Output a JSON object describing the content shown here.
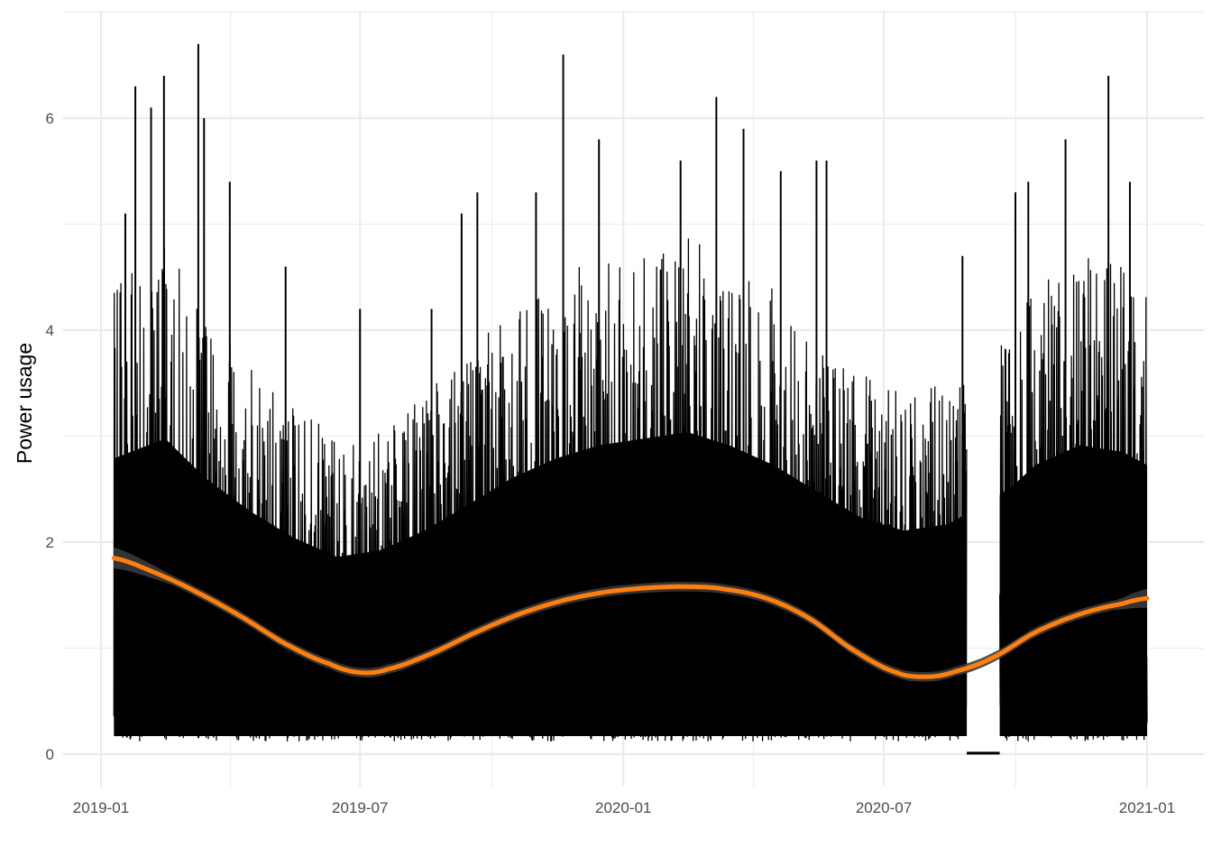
{
  "chart_data": {
    "type": "line",
    "title": "",
    "xlabel": "",
    "ylabel": "Power usage",
    "x_ticks": [
      "2019-01",
      "2019-07",
      "2020-01",
      "2020-07",
      "2021-01"
    ],
    "y_ticks": [
      "0",
      "2",
      "4",
      "6"
    ],
    "xlim": [
      "2018-12-20",
      "2021-01-20"
    ],
    "ylim": [
      -0.35,
      7.0
    ],
    "grid": true,
    "legend": "none",
    "colors": {
      "raw_series": "#000000",
      "smooth_line": "#ff7f0e",
      "confidence_band": "#3a3a3a",
      "gridline": "#ebebeb",
      "tick_text": "#4d4d4d"
    },
    "series": [
      {
        "kind": "raw",
        "start": "2019-01-10",
        "end": "2021-01-01",
        "gap": [
          "2020-08-28",
          "2020-09-20"
        ],
        "typical_low": 0.12,
        "envelope": [
          {
            "x": "2019-01-10",
            "y": 4.5
          },
          {
            "x": "2019-02-15",
            "y": 4.8
          },
          {
            "x": "2019-03-15",
            "y": 4.2
          },
          {
            "x": "2019-04-15",
            "y": 3.7
          },
          {
            "x": "2019-05-15",
            "y": 3.3
          },
          {
            "x": "2019-06-15",
            "y": 3.0
          },
          {
            "x": "2019-07-15",
            "y": 3.1
          },
          {
            "x": "2019-08-15",
            "y": 3.4
          },
          {
            "x": "2019-09-15",
            "y": 3.8
          },
          {
            "x": "2019-10-15",
            "y": 4.2
          },
          {
            "x": "2019-11-15",
            "y": 4.5
          },
          {
            "x": "2019-12-15",
            "y": 4.7
          },
          {
            "x": "2020-01-15",
            "y": 4.8
          },
          {
            "x": "2020-02-15",
            "y": 4.9
          },
          {
            "x": "2020-03-15",
            "y": 4.7
          },
          {
            "x": "2020-04-15",
            "y": 4.4
          },
          {
            "x": "2020-05-15",
            "y": 4.0
          },
          {
            "x": "2020-06-15",
            "y": 3.6
          },
          {
            "x": "2020-07-15",
            "y": 3.4
          },
          {
            "x": "2020-08-15",
            "y": 3.5
          },
          {
            "x": "2020-09-25",
            "y": 4.0
          },
          {
            "x": "2020-10-15",
            "y": 4.4
          },
          {
            "x": "2020-11-15",
            "y": 4.7
          },
          {
            "x": "2020-12-15",
            "y": 4.6
          },
          {
            "x": "2021-01-01",
            "y": 4.4
          }
        ],
        "peaks": [
          {
            "x": "2019-01-18",
            "y": 5.1
          },
          {
            "x": "2019-01-25",
            "y": 6.3
          },
          {
            "x": "2019-02-05",
            "y": 6.1
          },
          {
            "x": "2019-02-14",
            "y": 6.4
          },
          {
            "x": "2019-03-10",
            "y": 6.7
          },
          {
            "x": "2019-03-14",
            "y": 6.0
          },
          {
            "x": "2019-04-01",
            "y": 5.4
          },
          {
            "x": "2019-05-10",
            "y": 4.6
          },
          {
            "x": "2019-07-01",
            "y": 4.2
          },
          {
            "x": "2019-08-20",
            "y": 4.2
          },
          {
            "x": "2019-09-10",
            "y": 5.1
          },
          {
            "x": "2019-09-21",
            "y": 5.3
          },
          {
            "x": "2019-11-01",
            "y": 5.3
          },
          {
            "x": "2019-11-20",
            "y": 6.6
          },
          {
            "x": "2019-12-15",
            "y": 5.8
          },
          {
            "x": "2020-02-10",
            "y": 5.6
          },
          {
            "x": "2020-03-06",
            "y": 6.2
          },
          {
            "x": "2020-03-25",
            "y": 5.9
          },
          {
            "x": "2020-04-20",
            "y": 5.5
          },
          {
            "x": "2020-05-15",
            "y": 5.6
          },
          {
            "x": "2020-05-22",
            "y": 5.6
          },
          {
            "x": "2020-08-25",
            "y": 4.7
          },
          {
            "x": "2020-10-01",
            "y": 5.3
          },
          {
            "x": "2020-10-10",
            "y": 5.4
          },
          {
            "x": "2020-11-05",
            "y": 5.8
          },
          {
            "x": "2020-12-05",
            "y": 6.4
          },
          {
            "x": "2020-12-20",
            "y": 5.4
          }
        ]
      },
      {
        "kind": "smooth",
        "points": [
          {
            "x": "2019-01-10",
            "y": 1.85
          },
          {
            "x": "2019-02-10",
            "y": 1.7
          },
          {
            "x": "2019-03-10",
            "y": 1.52
          },
          {
            "x": "2019-04-10",
            "y": 1.29
          },
          {
            "x": "2019-05-10",
            "y": 1.04
          },
          {
            "x": "2019-06-10",
            "y": 0.85
          },
          {
            "x": "2019-07-01",
            "y": 0.77
          },
          {
            "x": "2019-07-20",
            "y": 0.8
          },
          {
            "x": "2019-08-20",
            "y": 0.95
          },
          {
            "x": "2019-09-20",
            "y": 1.15
          },
          {
            "x": "2019-10-20",
            "y": 1.32
          },
          {
            "x": "2019-11-20",
            "y": 1.45
          },
          {
            "x": "2019-12-20",
            "y": 1.53
          },
          {
            "x": "2020-01-20",
            "y": 1.57
          },
          {
            "x": "2020-02-15",
            "y": 1.58
          },
          {
            "x": "2020-03-10",
            "y": 1.56
          },
          {
            "x": "2020-04-10",
            "y": 1.47
          },
          {
            "x": "2020-05-10",
            "y": 1.28
          },
          {
            "x": "2020-06-10",
            "y": 0.98
          },
          {
            "x": "2020-07-10",
            "y": 0.77
          },
          {
            "x": "2020-08-01",
            "y": 0.73
          },
          {
            "x": "2020-08-20",
            "y": 0.78
          },
          {
            "x": "2020-09-15",
            "y": 0.91
          },
          {
            "x": "2020-10-15",
            "y": 1.15
          },
          {
            "x": "2020-11-15",
            "y": 1.32
          },
          {
            "x": "2020-12-15",
            "y": 1.42
          },
          {
            "x": "2021-01-01",
            "y": 1.47
          }
        ],
        "band_halfwidth": [
          {
            "x": "2019-01-10",
            "y": 0.1
          },
          {
            "x": "2019-02-20",
            "y": 0.045
          },
          {
            "x": "2020-12-10",
            "y": 0.045
          },
          {
            "x": "2021-01-01",
            "y": 0.09
          }
        ]
      }
    ]
  }
}
